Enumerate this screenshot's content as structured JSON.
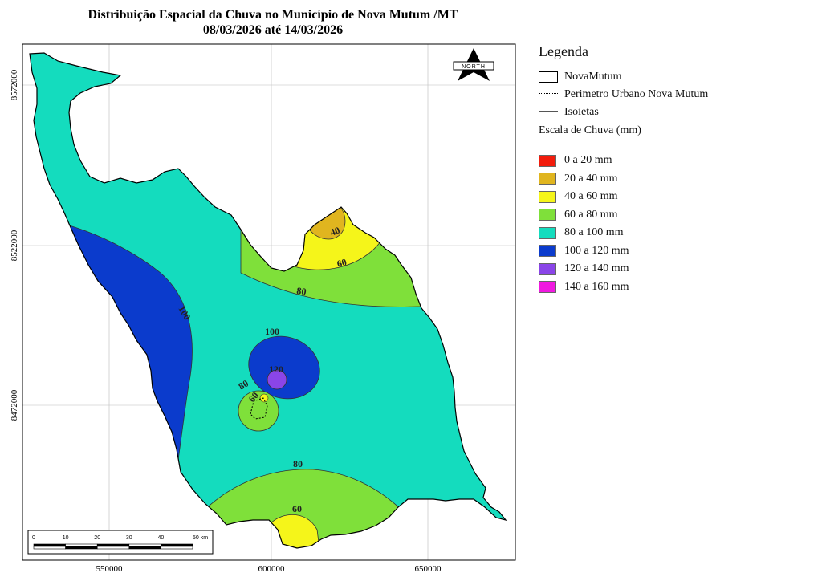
{
  "title": {
    "line1": "Distribuição Espacial da Chuva no Município de Nova Mutum /MT",
    "line2": "08/03/2026 até 14/03/2026"
  },
  "map": {
    "x_ticks": [
      "550000",
      "600000",
      "650000"
    ],
    "y_ticks": [
      "8572000",
      "8522000",
      "8472000"
    ],
    "north_label": "NORTH",
    "isoline_labels": [
      "40",
      "60",
      "80",
      "100",
      "100",
      "120",
      "80",
      "60",
      "80",
      "60"
    ],
    "scalebar": {
      "ticks": [
        "0",
        "10",
        "20",
        "30",
        "40",
        "50 km"
      ]
    }
  },
  "legend": {
    "title": "Legenda",
    "items": [
      {
        "label": "NovaMutum",
        "symbol": "polygon-outline"
      },
      {
        "label": "Perimetro Urbano Nova Mutum",
        "symbol": "dotted-line"
      },
      {
        "label": "Isoietas",
        "symbol": "solid-line"
      }
    ],
    "scale_title": "Escala de Chuva (mm)",
    "classes": [
      {
        "label": "0 a 20 mm",
        "color": "#f21c0c"
      },
      {
        "label": "20 a 40 mm",
        "color": "#e0b51f"
      },
      {
        "label": "40 a 60 mm",
        "color": "#f5f51a"
      },
      {
        "label": "60 a 80 mm",
        "color": "#7fe03a"
      },
      {
        "label": "80 a 100 mm",
        "color": "#14dcbe"
      },
      {
        "label": "100 a 120 mm",
        "color": "#0b3bcc"
      },
      {
        "label": "120 a 140 mm",
        "color": "#8a45e8"
      },
      {
        "label": "140 a 160 mm",
        "color": "#f019e0"
      }
    ]
  }
}
